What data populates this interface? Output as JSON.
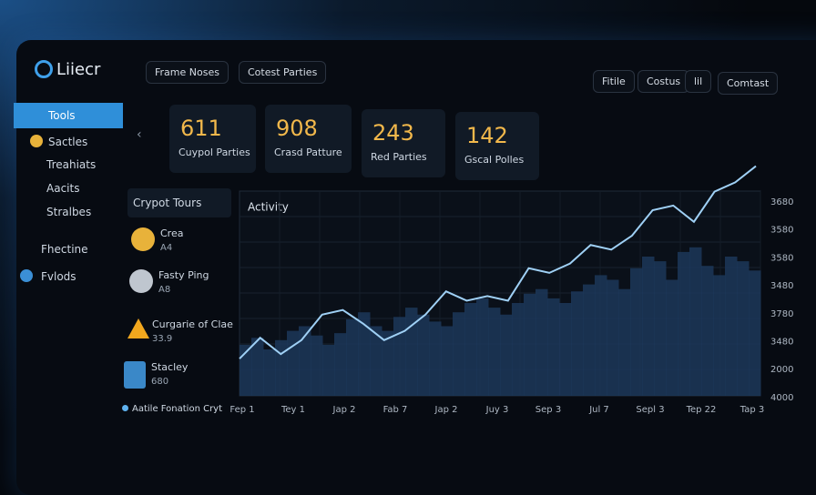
{
  "logo": "Liiecr",
  "top_tabs": [
    "Frame Noses",
    "Cotest Parties"
  ],
  "top_actions": [
    "Fitile",
    "Costus",
    "lil",
    "Comtast"
  ],
  "sidebar": [
    "Tools",
    "Sactles",
    "Treahiats",
    "Aacits",
    "Stralbes",
    "Fhectine",
    "Fvlods"
  ],
  "stats": [
    {
      "value": 611,
      "label": "Cuypol Parties"
    },
    {
      "value": 908,
      "label": "Crasd Patture"
    },
    {
      "value": 243,
      "label": "Red Parties"
    },
    {
      "value": 142,
      "label": "Gscal Polles"
    }
  ],
  "list": {
    "title": "Crypot Tours",
    "items": [
      {
        "name": "Crea",
        "sub": "A4"
      },
      {
        "name": "Fasty Ping",
        "sub": "A8"
      },
      {
        "name": "Curgarie of Clae",
        "sub": "33.9"
      },
      {
        "name": "Stacley",
        "sub": "680"
      }
    ],
    "footer": "Aatile Fonation Cryt"
  },
  "chart_data": {
    "type": "line",
    "title": "Activity",
    "x_labels": [
      "Fep 1",
      "Tey 1",
      "Jap 2",
      "Fab 7",
      "Jap 2",
      "Juy 3",
      "Sep 3",
      "Jul 7",
      "Sepl 3",
      "Tep 22",
      "Tap 3"
    ],
    "y_labels": [
      "3680",
      "3580",
      "3580",
      "3480",
      "3780",
      "3480",
      "2000",
      "4000"
    ],
    "ylim": [
      0,
      100
    ],
    "series": [
      {
        "color": "#9fd0f5",
        "values": [
          16,
          25,
          18,
          24,
          35,
          37,
          31,
          24,
          28,
          35,
          45,
          41,
          43,
          41,
          55,
          53,
          57,
          65,
          63,
          69,
          80,
          82,
          75,
          88,
          92,
          99
        ]
      },
      {
        "color": "#1d3a5c",
        "values": [
          22,
          25,
          20,
          24,
          28,
          30,
          26,
          22,
          27,
          33,
          36,
          30,
          28,
          34,
          38,
          35,
          32,
          30,
          36,
          40,
          42,
          38,
          35,
          40,
          44,
          46,
          42,
          40,
          45,
          48,
          52,
          50,
          46,
          55,
          60,
          58,
          50,
          62,
          64,
          56,
          52,
          60,
          58,
          54
        ]
      }
    ]
  }
}
